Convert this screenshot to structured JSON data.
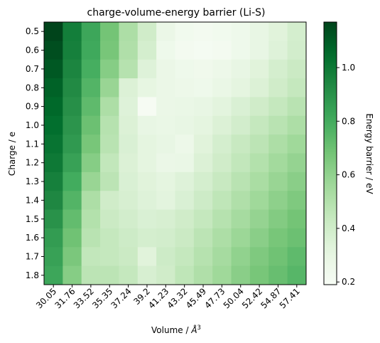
{
  "chart_data": {
    "type": "heatmap",
    "title": "charge-volume-energy barrier (Li-S)",
    "xlabel": "Volume / ",
    "xlabel_unit": "Å",
    "xlabel_exp": "3",
    "ylabel": "Charge / e",
    "colorbar_label": "Energy barrier / eV",
    "colormap": "Greens",
    "vmin": 0.19,
    "vmax": 1.17,
    "colorbar_ticks": [
      "0.2",
      "0.4",
      "0.6",
      "0.8",
      "1.0"
    ],
    "x": [
      "30.05",
      "31.76",
      "33.52",
      "35.35",
      "37.24",
      "39.2",
      "41.23",
      "43.32",
      "45.49",
      "47.73",
      "50.04",
      "52.42",
      "54.87",
      "57.41"
    ],
    "y": [
      "0.5",
      "0.6",
      "0.7",
      "0.8",
      "0.9",
      "1.0",
      "1.1",
      "1.2",
      "1.3",
      "1.4",
      "1.5",
      "1.6",
      "1.7",
      "1.8"
    ],
    "values": [
      [
        1.17,
        0.98,
        0.82,
        0.68,
        0.52,
        0.4,
        0.27,
        0.23,
        0.22,
        0.23,
        0.25,
        0.29,
        0.33,
        0.38
      ],
      [
        1.14,
        0.97,
        0.81,
        0.67,
        0.51,
        0.38,
        0.25,
        0.22,
        0.21,
        0.22,
        0.25,
        0.29,
        0.34,
        0.39
      ],
      [
        1.11,
        0.95,
        0.79,
        0.63,
        0.49,
        0.34,
        0.27,
        0.25,
        0.24,
        0.26,
        0.29,
        0.33,
        0.38,
        0.42
      ],
      [
        1.08,
        0.93,
        0.76,
        0.58,
        0.35,
        0.3,
        0.27,
        0.26,
        0.25,
        0.28,
        0.31,
        0.35,
        0.4,
        0.44
      ],
      [
        1.06,
        0.91,
        0.73,
        0.52,
        0.34,
        0.2,
        0.27,
        0.28,
        0.29,
        0.32,
        0.36,
        0.4,
        0.44,
        0.48
      ],
      [
        1.04,
        0.89,
        0.7,
        0.49,
        0.35,
        0.29,
        0.28,
        0.29,
        0.31,
        0.35,
        0.39,
        0.44,
        0.48,
        0.52
      ],
      [
        1.02,
        0.87,
        0.67,
        0.48,
        0.36,
        0.31,
        0.29,
        0.26,
        0.33,
        0.38,
        0.43,
        0.47,
        0.52,
        0.56
      ],
      [
        1.0,
        0.84,
        0.63,
        0.45,
        0.35,
        0.31,
        0.27,
        0.28,
        0.35,
        0.4,
        0.45,
        0.5,
        0.55,
        0.59
      ],
      [
        0.97,
        0.8,
        0.58,
        0.47,
        0.36,
        0.33,
        0.31,
        0.34,
        0.38,
        0.43,
        0.48,
        0.53,
        0.58,
        0.62
      ],
      [
        0.94,
        0.76,
        0.52,
        0.4,
        0.37,
        0.34,
        0.32,
        0.36,
        0.41,
        0.46,
        0.51,
        0.56,
        0.61,
        0.65
      ],
      [
        0.9,
        0.72,
        0.5,
        0.42,
        0.39,
        0.36,
        0.37,
        0.4,
        0.44,
        0.49,
        0.54,
        0.59,
        0.64,
        0.68
      ],
      [
        0.86,
        0.69,
        0.48,
        0.44,
        0.41,
        0.38,
        0.39,
        0.42,
        0.47,
        0.52,
        0.57,
        0.62,
        0.67,
        0.7
      ],
      [
        0.84,
        0.66,
        0.45,
        0.44,
        0.42,
        0.33,
        0.41,
        0.44,
        0.49,
        0.54,
        0.6,
        0.65,
        0.69,
        0.73
      ],
      [
        0.82,
        0.63,
        0.47,
        0.47,
        0.44,
        0.37,
        0.4,
        0.46,
        0.51,
        0.56,
        0.62,
        0.67,
        0.71,
        0.75
      ]
    ]
  }
}
